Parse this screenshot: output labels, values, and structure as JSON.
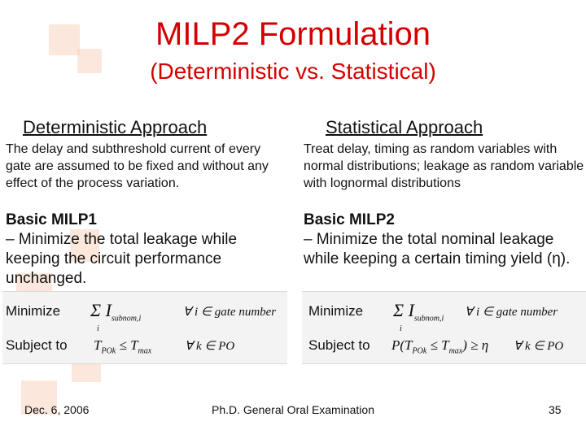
{
  "header": {
    "title": "MILP2 Formulation",
    "subtitle": "(Deterministic vs. Statistical)"
  },
  "left": {
    "heading": "Deterministic Approach",
    "description": "The delay and subthreshold current of every gate are assumed to be fixed and without any effect of the process variation.",
    "milp_title": "Basic MILP1",
    "milp_text": "– Minimize the total leakage while keeping the circuit performance unchanged.",
    "minimize_label": "Minimize",
    "subject_label": "Subject to",
    "objective": "Σ I",
    "objective_sub": "subnom,i",
    "objective_index": "i",
    "objective_cond": "∀ i ∈ gate number",
    "constraint": "T",
    "constraint_sub": "POk",
    "constraint_rest": "≤ T",
    "constraint_max": "max",
    "constraint_cond": "∀ k ∈ PO"
  },
  "right": {
    "heading": "Statistical Approach",
    "description": "Treat delay, timing as random variables with normal distributions; leakage as random variable with lognormal distributions",
    "milp_title": "Basic MILP2",
    "milp_text": "– Minimize the total nominal leakage while keeping a certain timing yield (η).",
    "minimize_label": "Minimize",
    "subject_label": "Subject to",
    "objective": "Σ I",
    "objective_sub": "subnom,i",
    "objective_index": "i",
    "objective_cond": "∀ i ∈ gate number",
    "constraint": "P(T",
    "constraint_sub": "POk",
    "constraint_rest": "≤ T",
    "constraint_max": "max",
    "constraint_tail": ") ≥ η",
    "constraint_cond": "∀ k ∈ PO"
  },
  "footer": {
    "date": "Dec. 6, 2006",
    "center": "Ph.D. General Oral Examination",
    "page": "35"
  },
  "colors": {
    "title": "#d40000",
    "decoration": "#f7d3bd"
  }
}
